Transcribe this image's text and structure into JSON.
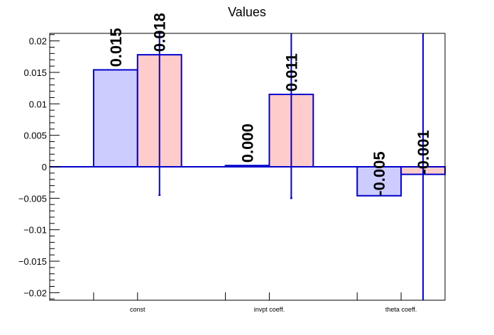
{
  "chart_data": {
    "type": "bar",
    "title": "Values",
    "xlabel": "",
    "ylabel": "",
    "categories": [
      "const",
      "invpt coeff.",
      "theta coeff."
    ],
    "ylim": [
      -0.0212,
      0.0212
    ],
    "yticks": [
      -0.02,
      -0.015,
      -0.01,
      -0.005,
      0,
      0.005,
      0.01,
      0.015,
      0.02
    ],
    "ytick_labels": [
      "−0.02",
      "−0.015",
      "−0.01",
      "−0.005",
      "0",
      "0.005",
      "0.01",
      "0.015",
      "0.02"
    ],
    "grid": false,
    "series": [
      {
        "color": "#ccccff",
        "edge_color": "#0000cc",
        "values": [
          0.0154,
          0.0002,
          -0.0046
        ],
        "value_labels": [
          "0.015",
          "0.000",
          "-0.005"
        ],
        "errors": [
          null,
          null,
          null
        ]
      },
      {
        "color": "#ffcccc",
        "edge_color": "#0000cc",
        "values": [
          0.0178,
          0.0115,
          -0.0012
        ],
        "value_labels": [
          "0.018",
          "0.011",
          "-0.001"
        ],
        "errors": [
          {
            "low": -0.0045,
            "high": 0.0212
          },
          {
            "low": -0.005,
            "high": 0.0212
          },
          {
            "low": -0.0212,
            "high": 0.0212
          }
        ]
      }
    ]
  }
}
